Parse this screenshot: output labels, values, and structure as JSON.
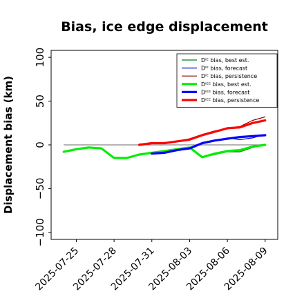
{
  "chart_data": {
    "type": "line",
    "title": "Bias, ice edge displacement",
    "ylabel": "Displacement bias (km)",
    "xlabel": "",
    "ylim": [
      -108,
      108
    ],
    "xlim": [
      "2025-07-23",
      "2025-08-10"
    ],
    "yticks": [
      -100,
      -50,
      0,
      50,
      100
    ],
    "ytick_labels": [
      "−100",
      "−50",
      "0",
      "50",
      "100"
    ],
    "x_tick_labels": [
      "2025-07-25",
      "2025-07-28",
      "2025-07-31",
      "2025-08-03",
      "2025-08-06",
      "2025-08-09"
    ],
    "highlighted_tick": "2025-07-31",
    "highlight_color": "#228b22",
    "zero_line": true,
    "grid": false,
    "legend_position": "top-right",
    "series": [
      {
        "name": "Dᴵᴱ bias, best est.",
        "color": "#008000",
        "width": 1.2,
        "x": [
          "2025-07-24",
          "2025-07-25",
          "2025-07-26",
          "2025-07-27",
          "2025-07-28",
          "2025-07-29",
          "2025-07-30",
          "2025-07-31",
          "2025-08-01",
          "2025-08-02",
          "2025-08-03",
          "2025-08-04",
          "2025-08-05",
          "2025-08-06",
          "2025-08-07",
          "2025-08-08",
          "2025-08-09"
        ],
        "values": [
          -8,
          -5,
          -3,
          -4,
          -15,
          -15,
          -11,
          -9,
          -8,
          -5,
          -3,
          -14,
          -11,
          -8,
          -8,
          -3,
          0
        ]
      },
      {
        "name": "Dᴵᴱ bias, forecast",
        "color": "#0000cd",
        "width": 1.2,
        "x": [
          "2025-07-31",
          "2025-08-01",
          "2025-08-02",
          "2025-08-03",
          "2025-08-04",
          "2025-08-05",
          "2025-08-06",
          "2025-08-07",
          "2025-08-08",
          "2025-08-09"
        ],
        "values": [
          -10,
          -9,
          -6,
          -3,
          2,
          5,
          8,
          6,
          8,
          12
        ]
      },
      {
        "name": "Dᴵᴱ bias, persistence",
        "color": "#8b0000",
        "width": 1.2,
        "x": [
          "2025-07-30",
          "2025-07-31",
          "2025-08-01",
          "2025-08-02",
          "2025-08-03",
          "2025-08-04",
          "2025-08-05",
          "2025-08-06",
          "2025-08-07",
          "2025-08-08",
          "2025-08-09"
        ],
        "values": [
          1,
          2,
          2,
          4,
          7,
          12,
          16,
          19,
          21,
          28,
          32
        ]
      },
      {
        "name": "Dᴵᴱᴱ bias, best est.",
        "color": "#00ee00",
        "width": 3.2,
        "x": [
          "2025-07-24",
          "2025-07-25",
          "2025-07-26",
          "2025-07-27",
          "2025-07-28",
          "2025-07-29",
          "2025-07-30",
          "2025-07-31",
          "2025-08-01",
          "2025-08-02",
          "2025-08-03",
          "2025-08-04",
          "2025-08-05",
          "2025-08-06",
          "2025-08-07",
          "2025-08-08",
          "2025-08-09"
        ],
        "values": [
          -8,
          -5,
          -3,
          -4,
          -15,
          -15,
          -11,
          -9,
          -7,
          -5,
          -3,
          -14,
          -10,
          -7,
          -6,
          -2,
          0
        ]
      },
      {
        "name": "Dᴵᴱᴱ bias, forecast",
        "color": "#0000ff",
        "width": 3.2,
        "x": [
          "2025-07-31",
          "2025-08-01",
          "2025-08-02",
          "2025-08-03",
          "2025-08-04",
          "2025-08-05",
          "2025-08-06",
          "2025-08-07",
          "2025-08-08",
          "2025-08-09"
        ],
        "values": [
          -10,
          -9,
          -6,
          -4,
          2,
          5,
          7,
          9,
          10,
          11
        ]
      },
      {
        "name": "Dᴵᴱᴱ bias, persistence",
        "color": "#ff0000",
        "width": 3.2,
        "x": [
          "2025-07-30",
          "2025-07-31",
          "2025-08-01",
          "2025-08-02",
          "2025-08-03",
          "2025-08-04",
          "2025-08-05",
          "2025-08-06",
          "2025-08-07",
          "2025-08-08",
          "2025-08-09"
        ],
        "values": [
          0,
          2,
          2,
          4,
          6,
          11,
          15,
          19,
          20,
          25,
          28
        ]
      }
    ]
  }
}
